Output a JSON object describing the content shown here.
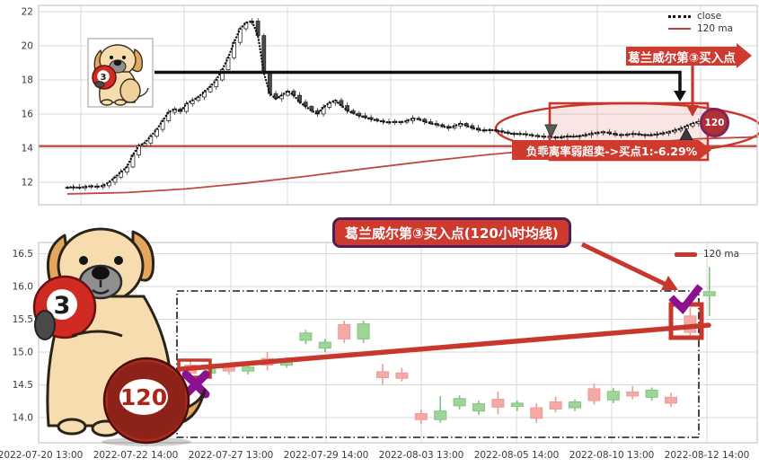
{
  "colors": {
    "annotation_red": "#c8372c",
    "banner_red": "#cf3a2f",
    "ma_red": "#bf4a42",
    "purple_mark": "#8b1190",
    "purple_border": "#4a1f5e",
    "candle_up_bottom": "#9ed69a",
    "candle_down_bottom": "#f4a9a5",
    "grid": "#d9d9d9"
  },
  "top_chart": {
    "legend": [
      "close",
      "120 ma"
    ],
    "annotations": {
      "buy_point_label": "葛兰威尔第③买入点",
      "oversold_banner": "负乖离率弱超卖->买点1:-6.29%",
      "ma_badge": "120",
      "ball3": "3"
    }
  },
  "bottom_chart": {
    "legend": [
      "120 ma"
    ],
    "annotations": {
      "buy_point_label": "葛兰威尔第③买入点(120小时均线)",
      "ball3": "3",
      "ball120": "120"
    }
  },
  "chart_data": [
    {
      "type": "candlestick",
      "title": "",
      "xlabel": "",
      "ylabel": "",
      "legend": [
        "close",
        "120 ma"
      ],
      "legend_position": "upper right",
      "grid": true,
      "ylim": [
        10.7,
        22.2
      ],
      "y_ticks": [
        12,
        14,
        16,
        18,
        20,
        22
      ],
      "closes": [
        11.7,
        11.72,
        11.67,
        11.74,
        11.78,
        11.73,
        11.8,
        12.0,
        12.3,
        12.6,
        12.9,
        13.6,
        14.15,
        14.3,
        14.7,
        15.1,
        15.6,
        16.1,
        16.3,
        16.15,
        16.6,
        16.8,
        17.0,
        17.3,
        17.6,
        18.0,
        18.6,
        19.3,
        20.2,
        21.0,
        21.35,
        21.45,
        20.6,
        18.4,
        17.2,
        16.9,
        17.1,
        17.35,
        17.1,
        16.7,
        16.45,
        16.2,
        16.0,
        16.4,
        16.65,
        16.8,
        16.5,
        16.2,
        16.05,
        15.9,
        15.8,
        15.7,
        15.62,
        15.55,
        15.5,
        15.55,
        15.52,
        15.6,
        15.75,
        15.7,
        15.55,
        15.45,
        15.38,
        15.28,
        15.18,
        15.3,
        15.45,
        15.32,
        15.18,
        15.08,
        15.02,
        15.08,
        15.02,
        14.95,
        14.88,
        14.82,
        14.85,
        14.8,
        14.75,
        14.7,
        14.68,
        14.66,
        14.62,
        14.65,
        14.7,
        14.68,
        14.72,
        14.78,
        14.85,
        14.9,
        14.95,
        14.88,
        14.8,
        14.76,
        14.8,
        14.85,
        14.8,
        14.75,
        14.78,
        14.82,
        14.88,
        14.95,
        15.05,
        15.15,
        15.3,
        15.45,
        15.55
      ],
      "ma_120_points": [
        [
          0,
          11.32
        ],
        [
          10,
          11.4
        ],
        [
          20,
          11.62
        ],
        [
          30,
          11.95
        ],
        [
          40,
          12.35
        ],
        [
          50,
          12.8
        ],
        [
          60,
          13.22
        ],
        [
          70,
          13.6
        ],
        [
          80,
          13.92
        ],
        [
          90,
          14.18
        ],
        [
          100,
          14.4
        ],
        [
          106,
          14.55
        ],
        [
          116,
          14.66
        ]
      ],
      "levels": {
        "black_resistance_line": 18.45,
        "red_horizontal_line": 14.12
      },
      "highlight": {
        "buy_zone_ellipse": true,
        "buy_zone_rectangle": true,
        "bias_pct": "-6.29%"
      }
    },
    {
      "type": "candlestick",
      "title": "",
      "xlabel": "",
      "ylabel": "",
      "legend": [
        "120 ma"
      ],
      "legend_position": "upper right",
      "grid": true,
      "ylim": [
        13.6,
        16.67
      ],
      "y_ticks": [
        "14.0",
        "14.5",
        "15.0",
        "15.5",
        "16.0",
        "16.5"
      ],
      "y_tick_vals": [
        14.0,
        14.5,
        15.0,
        15.5,
        16.0,
        16.5
      ],
      "x_labels": [
        "2022-07-20 13:00",
        "2022-07-22 14:00",
        "2022-07-27 13:00",
        "2022-07-29 14:00",
        "2022-08-03 13:00",
        "2022-08-05 14:00",
        "2022-08-10 13:00",
        "2022-08-12 14:00"
      ],
      "candles_ohlc": [
        [
          14.8,
          14.88,
          14.6,
          14.68
        ],
        [
          14.68,
          14.8,
          14.64,
          14.76
        ],
        [
          14.78,
          14.84,
          14.66,
          14.71
        ],
        [
          14.71,
          14.8,
          14.66,
          14.77
        ],
        [
          14.9,
          15.0,
          14.72,
          14.8
        ],
        [
          14.8,
          14.92,
          14.76,
          14.87
        ],
        [
          15.18,
          15.34,
          15.12,
          15.29
        ],
        [
          15.06,
          15.2,
          15.0,
          15.15
        ],
        [
          15.42,
          15.48,
          15.14,
          15.2
        ],
        [
          15.2,
          15.48,
          15.14,
          15.43
        ],
        [
          14.7,
          14.82,
          14.5,
          14.61
        ],
        [
          14.68,
          14.76,
          14.55,
          14.6
        ],
        [
          14.06,
          14.12,
          13.9,
          13.97
        ],
        [
          13.97,
          14.33,
          13.92,
          14.1
        ],
        [
          14.18,
          14.34,
          14.12,
          14.29
        ],
        [
          14.1,
          14.26,
          14.04,
          14.21
        ],
        [
          14.28,
          14.4,
          14.05,
          14.16
        ],
        [
          14.17,
          14.26,
          14.1,
          14.22
        ],
        [
          14.15,
          14.22,
          13.92,
          13.99
        ],
        [
          14.24,
          14.32,
          14.08,
          14.13
        ],
        [
          14.15,
          14.28,
          14.1,
          14.24
        ],
        [
          14.44,
          14.52,
          14.2,
          14.26
        ],
        [
          14.27,
          14.45,
          14.22,
          14.4
        ],
        [
          14.39,
          14.48,
          14.28,
          14.33
        ],
        [
          14.31,
          14.46,
          14.26,
          14.42
        ],
        [
          14.31,
          14.38,
          14.16,
          14.22
        ],
        [
          15.55,
          15.68,
          15.18,
          15.3
        ],
        [
          15.86,
          16.3,
          15.55,
          15.92
        ]
      ],
      "trendline_120ma": {
        "from_value": 14.74,
        "to_value": 15.41
      }
    }
  ]
}
